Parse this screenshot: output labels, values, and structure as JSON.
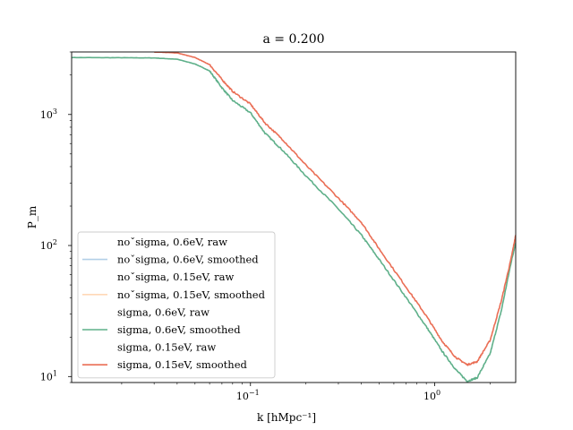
{
  "chart_data": {
    "type": "line",
    "title": "a = 0.200",
    "xlabel": "k [hMpc⁻¹]",
    "ylabel": "P_m",
    "xscale": "log",
    "yscale": "log",
    "xlim": [
      0.0107,
      2.75
    ],
    "ylim": [
      9.0,
      3000
    ],
    "x_ticks": [
      {
        "value": 0.1,
        "base": "10",
        "exp": "−1"
      },
      {
        "value": 1.0,
        "base": "10",
        "exp": "0"
      }
    ],
    "y_ticks": [
      {
        "value": 10,
        "base": "10",
        "exp": "1"
      },
      {
        "value": 100,
        "base": "10",
        "exp": "2"
      },
      {
        "value": 1000,
        "base": "10",
        "exp": "3"
      }
    ],
    "grid": false,
    "legend_position": "lower-left",
    "series": [
      {
        "name": "noˇsigma, 0.6eV, raw",
        "color": "#1f77b4",
        "visible": false,
        "x": [],
        "y": []
      },
      {
        "name": "noˇsigma, 0.6eV, smoothed",
        "color": "#7fb0d8",
        "visible": false,
        "x": [],
        "y": []
      },
      {
        "name": "noˇsigma, 0.15eV, raw",
        "color": "#ff7f0e",
        "visible": false,
        "x": [],
        "y": []
      },
      {
        "name": "noˇsigma, 0.15eV, smoothed",
        "color": "#ffbf86",
        "visible": false,
        "x": [],
        "y": []
      },
      {
        "name": "sigma, 0.6eV, raw",
        "color": "#2ca02c",
        "visible": false,
        "x": [],
        "y": []
      },
      {
        "name": "sigma, 0.6eV, smoothed",
        "color": "#5fb08a",
        "x": [
          0.0107,
          0.02,
          0.03,
          0.04,
          0.05,
          0.06,
          0.07,
          0.08,
          0.1,
          0.12,
          0.15,
          0.2,
          0.3,
          0.4,
          0.5,
          0.7,
          0.9,
          1.1,
          1.3,
          1.5,
          1.7,
          2.0,
          2.3,
          2.6,
          2.75
        ],
        "y": [
          2720,
          2710,
          2700,
          2640,
          2430,
          2150,
          1600,
          1280,
          1030,
          720,
          530,
          340,
          190,
          120,
          78,
          40,
          24,
          15.5,
          11.3,
          9.2,
          9.8,
          15,
          32,
          75,
          105
        ]
      },
      {
        "name": "sigma, 0.15eV, raw",
        "color": "#d62728",
        "visible": false,
        "x": [],
        "y": []
      },
      {
        "name": "sigma, 0.15eV, smoothed",
        "color": "#ea6e55",
        "x": [
          0.03,
          0.04,
          0.05,
          0.06,
          0.07,
          0.08,
          0.1,
          0.12,
          0.15,
          0.2,
          0.3,
          0.4,
          0.5,
          0.7,
          0.9,
          1.1,
          1.3,
          1.5,
          1.7,
          2.0,
          2.3,
          2.6,
          2.75
        ],
        "y": [
          3000,
          2950,
          2720,
          2400,
          1850,
          1500,
          1200,
          860,
          640,
          410,
          230,
          150,
          94,
          48,
          29,
          18.5,
          14,
          12.3,
          13,
          19,
          38,
          80,
          120
        ]
      }
    ]
  }
}
